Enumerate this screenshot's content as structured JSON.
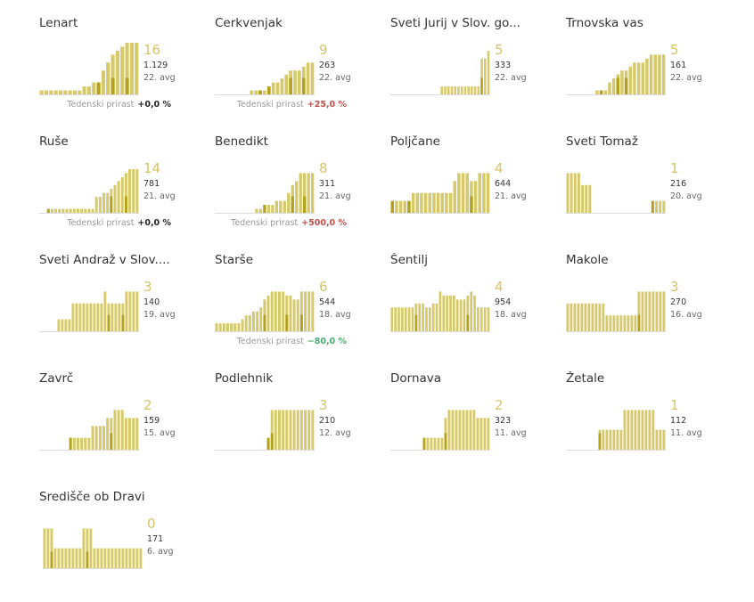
{
  "colors": {
    "bar": "#d6c96a",
    "bar_dark": "#b5a21c",
    "axis": "#dddddd"
  },
  "chart_data": [
    {
      "type": "bar",
      "title": "Lenart",
      "big": "16",
      "total": "1.129",
      "avg": "22. avg",
      "growth_label": "Tedenski prirast",
      "growth": "+0,0 %",
      "growth_dir": "neutral",
      "values": [
        1,
        1,
        1,
        1,
        1,
        1,
        1,
        1,
        1,
        2,
        2,
        3,
        3,
        6,
        8,
        10,
        11,
        12,
        13,
        13,
        13
      ],
      "highlight": [
        0,
        0,
        0,
        0,
        0,
        0,
        0,
        0,
        0,
        0,
        0,
        0,
        1,
        0,
        0,
        1,
        0,
        0,
        1,
        0,
        0
      ]
    },
    {
      "type": "bar",
      "title": "Cerkvenjak",
      "big": "9",
      "total": "263",
      "avg": "22. avg",
      "growth_label": "Tedenski prirast",
      "growth": "+25,0 %",
      "growth_dir": "up",
      "values": [
        0,
        0,
        0,
        0,
        0,
        0,
        0,
        0,
        1,
        1,
        1,
        1,
        2,
        3,
        3,
        4,
        5,
        6,
        6,
        6,
        7,
        8,
        8
      ],
      "highlight": [
        0,
        0,
        0,
        0,
        0,
        0,
        0,
        0,
        0,
        0,
        1,
        0,
        1,
        0,
        0,
        0,
        0,
        1,
        0,
        0,
        1,
        0,
        0
      ]
    },
    {
      "type": "bar",
      "title": "Sveti Jurij v Slov. go...",
      "big": "5",
      "total": "333",
      "avg": "22. avg",
      "growth_label": "",
      "growth": "",
      "growth_dir": "neutral",
      "values": [
        0,
        0,
        0,
        0,
        0,
        0,
        0,
        0,
        0,
        0,
        0,
        0,
        0,
        0,
        0,
        2,
        2,
        2,
        2,
        2,
        2,
        2,
        2,
        2,
        2,
        2,
        2,
        9,
        9,
        11
      ],
      "highlight": [
        0,
        0,
        0,
        0,
        0,
        0,
        0,
        0,
        0,
        0,
        0,
        0,
        0,
        0,
        0,
        0,
        0,
        0,
        0,
        0,
        0,
        0,
        0,
        0,
        0,
        0,
        0,
        1,
        0,
        0
      ]
    },
    {
      "type": "bar",
      "title": "Trnovska vas",
      "big": "5",
      "total": "161",
      "avg": "22. avg",
      "growth_label": "",
      "growth": "",
      "growth_dir": "neutral",
      "values": [
        0,
        0,
        0,
        0,
        0,
        0,
        0,
        1,
        1,
        1,
        3,
        4,
        5,
        6,
        6,
        7,
        8,
        8,
        8,
        9,
        10,
        10,
        10,
        10
      ],
      "highlight": [
        0,
        0,
        0,
        0,
        0,
        0,
        0,
        0,
        1,
        0,
        0,
        0,
        1,
        0,
        1,
        0,
        0,
        0,
        0,
        0,
        0,
        0,
        0,
        0
      ]
    },
    {
      "type": "bar",
      "title": "Ruše",
      "big": "14",
      "total": "781",
      "avg": "21. avg",
      "growth_label": "Tedenski prirast",
      "growth": "+0,0 %",
      "growth_dir": "neutral",
      "values": [
        0,
        0,
        1,
        1,
        1,
        1,
        1,
        1,
        1,
        1,
        1,
        1,
        1,
        1,
        1,
        4,
        4,
        5,
        5,
        6,
        7,
        8,
        9,
        10,
        11,
        11,
        11
      ],
      "highlight": [
        0,
        0,
        1,
        0,
        0,
        0,
        0,
        0,
        0,
        0,
        0,
        0,
        0,
        0,
        0,
        0,
        0,
        0,
        0,
        1,
        0,
        0,
        0,
        1,
        0,
        0,
        0
      ]
    },
    {
      "type": "bar",
      "title": "Benedikt",
      "big": "8",
      "total": "311",
      "avg": "21. avg",
      "growth_label": "Tedenski prirast",
      "growth": "+500,0 %",
      "growth_dir": "up",
      "values": [
        0,
        0,
        0,
        0,
        0,
        0,
        0,
        0,
        0,
        0,
        1,
        1,
        2,
        2,
        2,
        3,
        3,
        3,
        5,
        7,
        8,
        10,
        10,
        10,
        10
      ],
      "highlight": [
        0,
        0,
        0,
        0,
        0,
        0,
        0,
        0,
        0,
        0,
        0,
        0,
        1,
        0,
        0,
        0,
        0,
        0,
        0,
        1,
        0,
        0,
        1,
        0,
        0
      ]
    },
    {
      "type": "bar",
      "title": "Poljčane",
      "big": "4",
      "total": "644",
      "avg": "21. avg",
      "growth_label": "",
      "growth": "",
      "growth_dir": "neutral",
      "values": [
        3,
        3,
        3,
        3,
        3,
        5,
        5,
        5,
        5,
        5,
        5,
        5,
        5,
        5,
        5,
        8,
        10,
        10,
        10,
        8,
        8,
        10,
        10,
        10
      ],
      "highlight": [
        1,
        0,
        0,
        0,
        1,
        0,
        0,
        0,
        0,
        0,
        0,
        0,
        0,
        0,
        0,
        0,
        0,
        0,
        0,
        1,
        0,
        0,
        0,
        0
      ]
    },
    {
      "type": "bar",
      "title": "Sveti Tomaž",
      "big": "1",
      "total": "216",
      "avg": "20. avg",
      "growth_label": "",
      "growth": "",
      "growth_dir": "neutral",
      "values": [
        10,
        10,
        10,
        10,
        7,
        7,
        7,
        0,
        0,
        0,
        0,
        0,
        0,
        0,
        0,
        0,
        0,
        0,
        0,
        0,
        0,
        0,
        0,
        3,
        3,
        3,
        3
      ],
      "highlight": [
        0,
        0,
        0,
        0,
        0,
        0,
        0,
        0,
        0,
        0,
        0,
        0,
        0,
        0,
        0,
        0,
        0,
        0,
        0,
        0,
        0,
        0,
        0,
        1,
        0,
        0,
        0
      ]
    },
    {
      "type": "bar",
      "title": "Sveti Andraž v Slov....",
      "big": "3",
      "total": "140",
      "avg": "19. avg",
      "growth_label": "",
      "growth": "",
      "growth_dir": "neutral",
      "values": [
        0,
        0,
        0,
        0,
        0,
        3,
        3,
        3,
        3,
        7,
        7,
        7,
        7,
        7,
        7,
        7,
        7,
        7,
        10,
        7,
        7,
        7,
        7,
        7,
        10,
        10,
        10,
        10
      ],
      "highlight": [
        0,
        0,
        0,
        1,
        0,
        0,
        0,
        0,
        0,
        0,
        0,
        0,
        0,
        0,
        0,
        0,
        0,
        0,
        0,
        1,
        0,
        0,
        0,
        1,
        0,
        0,
        0,
        0
      ]
    },
    {
      "type": "bar",
      "title": "Starše",
      "big": "6",
      "total": "544",
      "avg": "18. avg",
      "growth_label": "Tedenski prirast",
      "growth": "−80,0 %",
      "growth_dir": "down",
      "values": [
        2,
        2,
        2,
        2,
        2,
        2,
        2,
        3,
        4,
        4,
        5,
        5,
        6,
        8,
        9,
        10,
        10,
        10,
        10,
        9,
        9,
        8,
        8,
        10,
        10,
        10,
        10
      ],
      "highlight": [
        0,
        0,
        0,
        0,
        0,
        0,
        0,
        0,
        0,
        0,
        0,
        0,
        0,
        1,
        0,
        0,
        0,
        0,
        0,
        1,
        0,
        0,
        0,
        1,
        0,
        0,
        0
      ]
    },
    {
      "type": "bar",
      "title": "Šentilj",
      "big": "4",
      "total": "954",
      "avg": "18. avg",
      "growth_label": "",
      "growth": "",
      "growth_dir": "neutral",
      "values": [
        6,
        6,
        6,
        6,
        6,
        6,
        6,
        7,
        7,
        7,
        6,
        6,
        7,
        7,
        10,
        9,
        9,
        9,
        9,
        8,
        8,
        8,
        9,
        10,
        9,
        6,
        6,
        6,
        6
      ],
      "highlight": [
        0,
        0,
        0,
        0,
        0,
        0,
        0,
        1,
        0,
        0,
        0,
        0,
        0,
        0,
        0,
        0,
        0,
        0,
        0,
        0,
        0,
        0,
        1,
        0,
        0,
        0,
        0,
        0,
        0
      ]
    },
    {
      "type": "bar",
      "title": "Makole",
      "big": "3",
      "total": "270",
      "avg": "16. avg",
      "growth_label": "",
      "growth": "",
      "growth_dir": "neutral",
      "values": [
        7,
        7,
        7,
        7,
        7,
        7,
        7,
        7,
        7,
        7,
        7,
        4,
        4,
        4,
        4,
        4,
        4,
        4,
        4,
        4,
        10,
        10,
        10,
        10,
        10,
        10,
        10,
        10
      ],
      "highlight": [
        0,
        0,
        0,
        0,
        0,
        0,
        0,
        0,
        0,
        0,
        0,
        0,
        0,
        0,
        0,
        0,
        0,
        0,
        0,
        0,
        1,
        0,
        0,
        0,
        0,
        0,
        0,
        0
      ]
    },
    {
      "type": "bar",
      "title": "Zavrč",
      "big": "2",
      "total": "159",
      "avg": "15. avg",
      "growth_label": "",
      "growth": "",
      "growth_dir": "neutral",
      "values": [
        0,
        0,
        0,
        0,
        0,
        0,
        0,
        0,
        3,
        3,
        3,
        3,
        3,
        3,
        6,
        6,
        6,
        6,
        8,
        8,
        10,
        10,
        10,
        8,
        8,
        8,
        8
      ],
      "highlight": [
        0,
        0,
        0,
        0,
        0,
        0,
        0,
        0,
        1,
        0,
        0,
        0,
        0,
        0,
        0,
        0,
        0,
        0,
        0,
        1,
        0,
        0,
        0,
        0,
        0,
        0,
        0
      ]
    },
    {
      "type": "bar",
      "title": "Podlehnik",
      "big": "3",
      "total": "210",
      "avg": "12. avg",
      "growth_label": "",
      "growth": "",
      "growth_dir": "neutral",
      "values": [
        0,
        0,
        0,
        0,
        0,
        0,
        0,
        0,
        0,
        0,
        0,
        0,
        0,
        0,
        3,
        10,
        10,
        10,
        10,
        10,
        10,
        10,
        10,
        10,
        10,
        10,
        10
      ],
      "highlight": [
        0,
        0,
        0,
        0,
        0,
        0,
        0,
        0,
        0,
        0,
        0,
        0,
        0,
        0,
        1,
        1,
        0,
        0,
        0,
        0,
        0,
        0,
        0,
        0,
        0,
        0,
        0
      ]
    },
    {
      "type": "bar",
      "title": "Dornava",
      "big": "2",
      "total": "323",
      "avg": "11. avg",
      "growth_label": "",
      "growth": "",
      "growth_dir": "neutral",
      "values": [
        0,
        0,
        0,
        0,
        0,
        0,
        0,
        0,
        0,
        3,
        3,
        3,
        3,
        3,
        3,
        8,
        10,
        10,
        10,
        10,
        10,
        10,
        10,
        10,
        8,
        8,
        8,
        8
      ],
      "highlight": [
        0,
        0,
        0,
        0,
        0,
        0,
        0,
        0,
        0,
        1,
        0,
        0,
        0,
        0,
        0,
        1,
        0,
        0,
        0,
        0,
        0,
        0,
        0,
        0,
        0,
        0,
        0,
        0
      ]
    },
    {
      "type": "bar",
      "title": "Žetale",
      "big": "1",
      "total": "112",
      "avg": "11. avg",
      "growth_label": "",
      "growth": "",
      "growth_dir": "neutral",
      "values": [
        0,
        0,
        0,
        0,
        0,
        0,
        0,
        0,
        0,
        5,
        5,
        5,
        5,
        5,
        5,
        5,
        10,
        10,
        10,
        10,
        10,
        10,
        10,
        10,
        10,
        5,
        5,
        5
      ],
      "highlight": [
        0,
        0,
        0,
        0,
        0,
        0,
        0,
        0,
        0,
        1,
        0,
        0,
        0,
        0,
        0,
        0,
        0,
        0,
        0,
        0,
        0,
        0,
        0,
        0,
        0,
        0,
        0,
        0
      ]
    },
    {
      "type": "bar",
      "title": "Središče ob Dravi",
      "big": "0",
      "total": "171",
      "avg": "6. avg",
      "growth_label": "",
      "growth": "",
      "growth_dir": "neutral",
      "values": [
        10,
        10,
        10,
        5,
        5,
        5,
        5,
        5,
        5,
        5,
        5,
        10,
        10,
        10,
        5,
        5,
        5,
        5,
        5,
        5,
        5,
        5,
        5,
        5,
        5,
        5,
        5,
        5
      ],
      "highlight": [
        0,
        0,
        1,
        0,
        0,
        0,
        0,
        0,
        0,
        0,
        0,
        0,
        1,
        0,
        0,
        0,
        0,
        0,
        0,
        0,
        0,
        0,
        0,
        0,
        0,
        0,
        0,
        0
      ]
    }
  ]
}
